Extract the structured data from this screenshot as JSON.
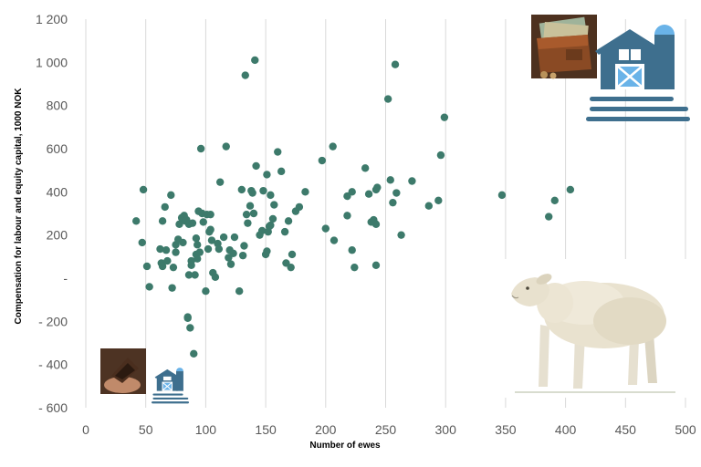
{
  "chart_data": {
    "type": "scatter",
    "title": "",
    "xlabel": "Number of ewes",
    "ylabel": "Compensation for labour and equity capital,  1000 NOK",
    "xlim": [
      0,
      500
    ],
    "ylim": [
      -600,
      1200
    ],
    "x_ticks": [
      "0",
      "50",
      "100",
      "150",
      "200",
      "250",
      "300",
      "350",
      "400",
      "450",
      "500"
    ],
    "y_ticks": [
      "- 600",
      "- 400",
      "- 200",
      "-",
      "200",
      "400",
      "600",
      "800",
      "1 000",
      "1 200"
    ],
    "grid": "vertical gridlines",
    "legend": "none",
    "marker_color": "#3D7A6B",
    "series": [
      {
        "x": [
          42,
          47,
          48,
          51,
          53,
          62,
          63,
          64,
          64,
          66,
          67,
          68,
          71,
          72,
          73,
          75,
          75,
          77,
          78,
          80,
          81,
          82,
          83,
          84,
          85,
          85,
          86,
          86,
          87,
          88,
          88,
          89,
          90,
          91,
          92,
          92,
          93,
          93,
          94,
          95,
          96,
          97,
          98,
          100,
          101,
          102,
          103,
          104,
          104,
          105,
          106,
          108,
          110,
          111,
          112,
          115,
          117,
          119,
          120,
          121,
          123,
          124,
          128,
          130,
          131,
          132,
          133,
          134,
          135,
          137,
          138,
          139,
          140,
          141,
          142,
          145,
          147,
          148,
          150,
          151,
          151,
          152,
          153,
          154,
          154,
          156,
          157,
          160,
          163,
          166,
          167,
          169,
          171,
          172,
          175,
          178,
          183,
          197,
          200,
          206,
          207,
          218,
          218,
          222,
          222,
          224,
          233,
          236,
          238,
          240,
          242,
          242,
          242,
          243,
          252,
          254,
          256,
          258,
          259,
          263,
          272,
          286,
          294,
          296,
          299,
          347,
          386,
          391,
          404
        ],
        "y": [
          265,
          165,
          410,
          55,
          -40,
          135,
          70,
          265,
          55,
          330,
          130,
          80,
          385,
          -45,
          50,
          155,
          120,
          180,
          250,
          280,
          165,
          290,
          265,
          270,
          -185,
          -180,
          15,
          250,
          -230,
          80,
          60,
          255,
          -350,
          15,
          110,
          185,
          155,
          90,
          310,
          120,
          600,
          300,
          260,
          -60,
          295,
          135,
          215,
          225,
          295,
          175,
          25,
          5,
          160,
          135,
          445,
          190,
          610,
          95,
          130,
          65,
          115,
          190,
          -60,
          410,
          105,
          150,
          940,
          295,
          255,
          335,
          405,
          395,
          300,
          1010,
          520,
          200,
          220,
          405,
          110,
          125,
          480,
          215,
          240,
          385,
          245,
          275,
          340,
          585,
          495,
          215,
          70,
          265,
          50,
          110,
          310,
          330,
          400,
          545,
          230,
          610,
          175,
          290,
          380,
          400,
          130,
          50,
          510,
          390,
          260,
          270,
          60,
          250,
          410,
          420,
          830,
          455,
          350,
          990,
          395,
          200,
          450,
          335,
          360,
          570,
          745,
          385,
          285,
          360,
          410
        ]
      }
    ]
  },
  "images": {
    "top_photo": "wallet-with-banknotes-and-coins",
    "top_icon": "farm-barn-with-silo-icon",
    "bottom_photo": "empty-open-wallet-in-hands",
    "bottom_icon": "farm-barn-with-silo-icon",
    "sheep": "sheep-illustration"
  }
}
